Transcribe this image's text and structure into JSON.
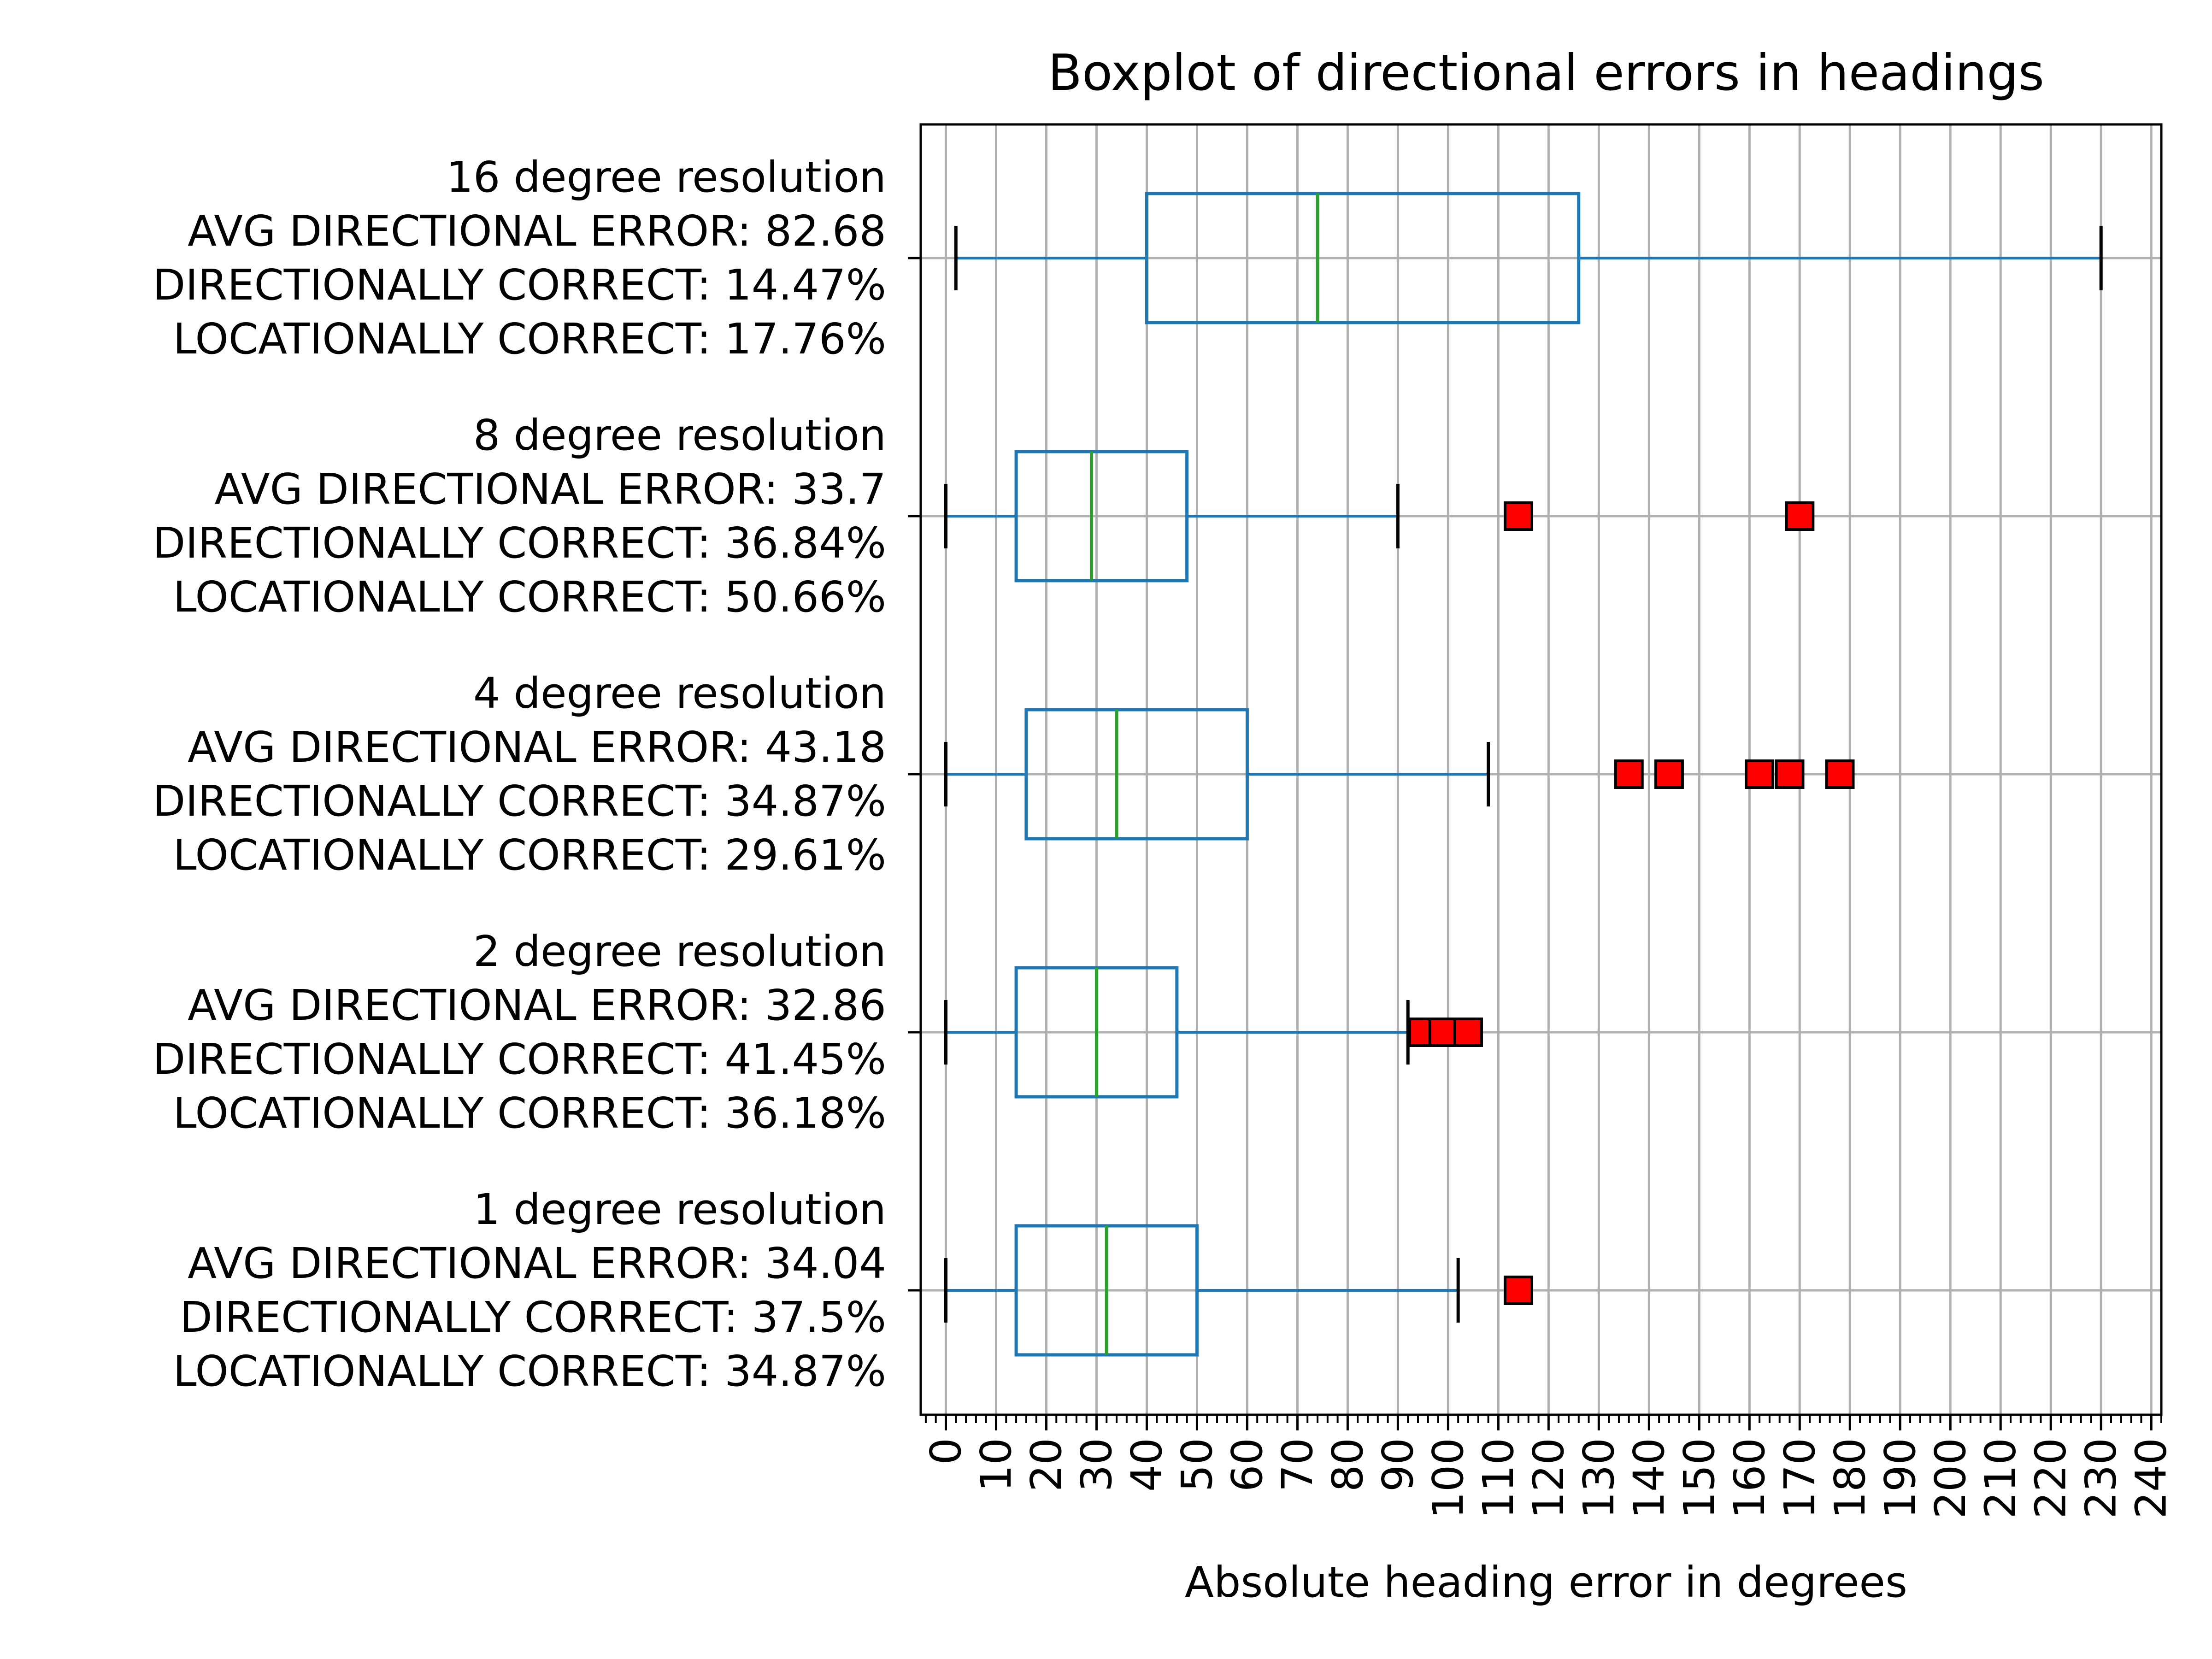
{
  "chart_data": {
    "type": "boxplot",
    "orientation": "horizontal",
    "title": "Boxplot of directional errors in headings",
    "xlabel": "Absolute heading error in degrees",
    "ylabel": "",
    "xlim": [
      -5,
      242
    ],
    "x_ticks": [
      0,
      10,
      20,
      30,
      40,
      50,
      60,
      70,
      80,
      90,
      100,
      110,
      120,
      130,
      140,
      150,
      160,
      170,
      180,
      190,
      200,
      210,
      220,
      230,
      240
    ],
    "x_tick_labels": [
      "0",
      "10",
      "20",
      "30",
      "40",
      "50",
      "60",
      "70",
      "80",
      "90",
      "100",
      "110",
      "120",
      "130",
      "140",
      "150",
      "160",
      "170",
      "180",
      "190",
      "200",
      "210",
      "220",
      "230",
      "240"
    ],
    "x_minor_tick_step": 2,
    "grid": true,
    "legend": "none",
    "series": [
      {
        "label_lines": [
          "16 degree resolution",
          "AVG DIRECTIONAL ERROR: 82.68",
          "DIRECTIONALLY CORRECT: 14.47%",
          "LOCATIONALLY CORRECT: 17.76%"
        ],
        "whisker_low": 2,
        "q1": 40,
        "median": 74,
        "q3": 126,
        "whisker_high": 230,
        "outliers": []
      },
      {
        "label_lines": [
          "8 degree resolution",
          "AVG DIRECTIONAL ERROR: 33.7",
          "DIRECTIONALLY CORRECT: 36.84%",
          "LOCATIONALLY CORRECT: 50.66%"
        ],
        "whisker_low": 0,
        "q1": 14,
        "median": 29,
        "q3": 48,
        "whisker_high": 90,
        "outliers": [
          114,
          170
        ]
      },
      {
        "label_lines": [
          "4 degree resolution",
          "AVG DIRECTIONAL ERROR: 43.18",
          "DIRECTIONALLY CORRECT: 34.87%",
          "LOCATIONALLY CORRECT: 29.61%"
        ],
        "whisker_low": 0,
        "q1": 16,
        "median": 34,
        "q3": 60,
        "whisker_high": 108,
        "outliers": [
          136,
          144,
          162,
          168,
          178
        ]
      },
      {
        "label_lines": [
          "2 degree resolution",
          "AVG DIRECTIONAL ERROR: 32.86",
          "DIRECTIONALLY CORRECT: 41.45%",
          "LOCATIONALLY CORRECT: 36.18%"
        ],
        "whisker_low": 0,
        "q1": 14,
        "median": 30,
        "q3": 46,
        "whisker_high": 92,
        "outliers": [
          95,
          99,
          104
        ]
      },
      {
        "label_lines": [
          "1 degree resolution",
          "AVG DIRECTIONAL ERROR: 34.04",
          "DIRECTIONALLY CORRECT: 37.5%",
          "LOCATIONALLY CORRECT: 34.87%"
        ],
        "whisker_low": 0,
        "q1": 14,
        "median": 32,
        "q3": 50,
        "whisker_high": 102,
        "outliers": [
          114
        ]
      }
    ],
    "colors": {
      "box": "#1f77b4",
      "median": "#2ca02c",
      "whisker_cap": "#000000",
      "outlier_fill": "#ff0000",
      "outlier_edge": "#000000",
      "grid": "#b0b0b0",
      "axes": "#000000"
    }
  }
}
